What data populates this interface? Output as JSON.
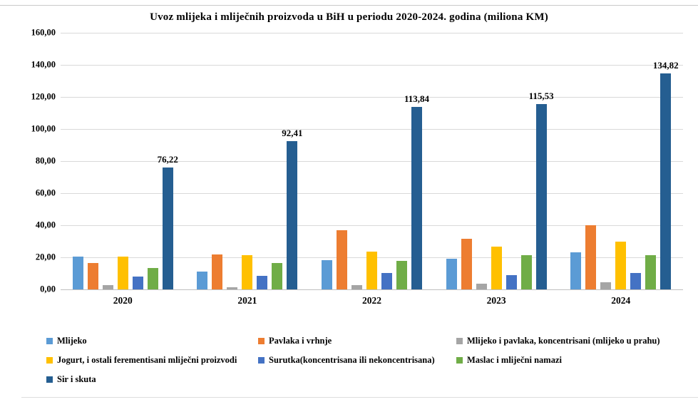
{
  "chart_data": {
    "type": "bar",
    "title": "Uvoz mlijeka i mliječnih proizvoda u BiH u periodu 2020-2024. godina (miliona KM)",
    "categories": [
      "2020",
      "2021",
      "2022",
      "2023",
      "2024"
    ],
    "series": [
      {
        "name": "Mlijeko",
        "color": "#5B9BD5",
        "values": [
          20.6,
          10.9,
          18.2,
          18.9,
          23.2
        ]
      },
      {
        "name": "Pavlaka i vrhnje",
        "color": "#ED7D31",
        "values": [
          16.6,
          21.8,
          36.8,
          31.5,
          40.2
        ]
      },
      {
        "name": "Mlijeko i pavlaka, koncentrisani (mlijeko u prahu)",
        "color": "#A5A5A5",
        "values": [
          2.6,
          1.4,
          2.7,
          3.4,
          4.3
        ]
      },
      {
        "name": "Jogurt, i ostali ferementisani mliječni  proizvodi",
        "color": "#FFC000",
        "values": [
          20.6,
          21.4,
          23.6,
          26.8,
          29.8
        ]
      },
      {
        "name": "Surutka(koncentrisana ili nekoncentrisana)",
        "color": "#4472C4",
        "values": [
          8.0,
          8.5,
          10.1,
          9.0,
          10.2
        ]
      },
      {
        "name": "Maslac i mliječni namazi",
        "color": "#70AD47",
        "values": [
          13.5,
          16.4,
          17.9,
          21.5,
          21.3
        ]
      },
      {
        "name": "Sir i skuta",
        "color": "#255E91",
        "values": [
          76.22,
          92.41,
          113.84,
          115.53,
          134.82
        ],
        "data_labels": [
          "76,22",
          "92,41",
          "113,84",
          "115,53",
          "134,82"
        ]
      }
    ],
    "ylabel": "",
    "xlabel": "",
    "ylim": [
      0,
      160
    ],
    "ytick_step": 20,
    "ytick_labels": [
      "0,00",
      "20,00",
      "40,00",
      "60,00",
      "80,00",
      "100,00",
      "120,00",
      "140,00",
      "160,00"
    ],
    "grid": true,
    "legend_position": "bottom",
    "legend_columns": 3,
    "gridline_color": "#d9d9d9",
    "baseline_color": "#bfbfbf"
  }
}
